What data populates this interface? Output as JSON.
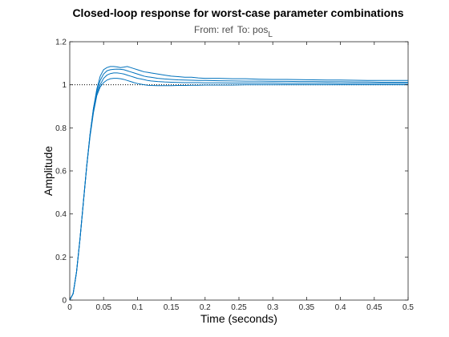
{
  "chart_data": {
    "type": "line",
    "title": "Closed-loop response for worst-case parameter combinations",
    "subtitle": {
      "from_label": "From: ref",
      "to_label": "To: pos",
      "to_subscript": "L"
    },
    "xlabel": "Time (seconds)",
    "ylabel": "Amplitude",
    "xlim": [
      0,
      0.5
    ],
    "ylim": [
      0,
      1.2
    ],
    "xticks": [
      0,
      0.05,
      0.1,
      0.15,
      0.2,
      0.25,
      0.3,
      0.35,
      0.4,
      0.45,
      0.5
    ],
    "yticks": [
      0,
      0.2,
      0.4,
      0.6,
      0.8,
      1,
      1.2
    ],
    "xtick_labels": [
      "0",
      "0.05",
      "0.1",
      "0.15",
      "0.2",
      "0.25",
      "0.3",
      "0.35",
      "0.4",
      "0.45",
      "0.5"
    ],
    "ytick_labels": [
      "0",
      "0.2",
      "0.4",
      "0.6",
      "0.8",
      "1",
      "1.2"
    ],
    "reference_line": {
      "y": 1,
      "style": "dotted",
      "color": "#000000"
    },
    "grid": false,
    "series_color": "#0072bd",
    "series": [
      {
        "x": [
          0,
          0.005,
          0.01,
          0.015,
          0.02,
          0.025,
          0.03,
          0.035,
          0.04,
          0.045,
          0.05,
          0.055,
          0.06,
          0.065,
          0.07,
          0.075,
          0.08,
          0.085,
          0.09,
          0.095,
          0.1,
          0.105,
          0.11,
          0.115,
          0.12,
          0.13,
          0.14,
          0.15,
          0.16,
          0.17,
          0.18,
          0.19,
          0.2,
          0.22,
          0.24,
          0.26,
          0.28,
          0.3,
          0.32,
          0.34,
          0.36,
          0.38,
          0.4,
          0.42,
          0.44,
          0.46,
          0.48,
          0.5
        ],
        "y": [
          0,
          0.03,
          0.13,
          0.28,
          0.45,
          0.62,
          0.77,
          0.89,
          0.98,
          1.04,
          1.07,
          1.08,
          1.085,
          1.085,
          1.083,
          1.08,
          1.082,
          1.085,
          1.08,
          1.075,
          1.07,
          1.065,
          1.06,
          1.058,
          1.055,
          1.05,
          1.045,
          1.04,
          1.038,
          1.035,
          1.035,
          1.032,
          1.03,
          1.03,
          1.028,
          1.028,
          1.026,
          1.025,
          1.025,
          1.024,
          1.023,
          1.022,
          1.022,
          1.021,
          1.02,
          1.02,
          1.02,
          1.02
        ]
      },
      {
        "x": [
          0,
          0.005,
          0.01,
          0.015,
          0.02,
          0.025,
          0.03,
          0.035,
          0.04,
          0.045,
          0.05,
          0.055,
          0.06,
          0.065,
          0.07,
          0.075,
          0.08,
          0.085,
          0.09,
          0.095,
          0.1,
          0.105,
          0.11,
          0.115,
          0.12,
          0.13,
          0.14,
          0.15,
          0.16,
          0.17,
          0.18,
          0.19,
          0.2,
          0.22,
          0.24,
          0.26,
          0.28,
          0.3,
          0.32,
          0.34,
          0.36,
          0.38,
          0.4,
          0.42,
          0.44,
          0.46,
          0.48,
          0.5
        ],
        "y": [
          0,
          0.03,
          0.13,
          0.28,
          0.45,
          0.62,
          0.77,
          0.89,
          0.97,
          1.02,
          1.05,
          1.065,
          1.07,
          1.072,
          1.073,
          1.072,
          1.07,
          1.065,
          1.06,
          1.055,
          1.05,
          1.045,
          1.04,
          1.037,
          1.035,
          1.03,
          1.027,
          1.025,
          1.023,
          1.022,
          1.021,
          1.02,
          1.02,
          1.019,
          1.018,
          1.017,
          1.017,
          1.016,
          1.016,
          1.015,
          1.015,
          1.014,
          1.014,
          1.013,
          1.013,
          1.012,
          1.012,
          1.012
        ]
      },
      {
        "x": [
          0,
          0.005,
          0.01,
          0.015,
          0.02,
          0.025,
          0.03,
          0.035,
          0.04,
          0.045,
          0.05,
          0.055,
          0.06,
          0.065,
          0.07,
          0.075,
          0.08,
          0.085,
          0.09,
          0.095,
          0.1,
          0.105,
          0.11,
          0.115,
          0.12,
          0.13,
          0.14,
          0.15,
          0.16,
          0.17,
          0.18,
          0.19,
          0.2,
          0.22,
          0.24,
          0.26,
          0.28,
          0.3,
          0.32,
          0.34,
          0.36,
          0.38,
          0.4,
          0.42,
          0.44,
          0.46,
          0.48,
          0.5
        ],
        "y": [
          0,
          0.03,
          0.13,
          0.28,
          0.45,
          0.62,
          0.77,
          0.88,
          0.96,
          1.0,
          1.03,
          1.045,
          1.052,
          1.055,
          1.055,
          1.053,
          1.05,
          1.045,
          1.04,
          1.035,
          1.03,
          1.027,
          1.024,
          1.02,
          1.018,
          1.015,
          1.013,
          1.012,
          1.011,
          1.01,
          1.01,
          1.01,
          1.009,
          1.009,
          1.008,
          1.008,
          1.008,
          1.008,
          1.007,
          1.007,
          1.007,
          1.007,
          1.006,
          1.006,
          1.006,
          1.006,
          1.006,
          1.006
        ]
      },
      {
        "x": [
          0,
          0.005,
          0.01,
          0.015,
          0.02,
          0.025,
          0.03,
          0.035,
          0.04,
          0.045,
          0.05,
          0.055,
          0.06,
          0.065,
          0.07,
          0.075,
          0.08,
          0.085,
          0.09,
          0.095,
          0.1,
          0.105,
          0.11,
          0.115,
          0.12,
          0.13,
          0.14,
          0.15,
          0.16,
          0.17,
          0.18,
          0.19,
          0.2,
          0.22,
          0.24,
          0.26,
          0.28,
          0.3,
          0.32,
          0.34,
          0.36,
          0.38,
          0.4,
          0.42,
          0.44,
          0.46,
          0.48,
          0.5
        ],
        "y": [
          0,
          0.03,
          0.13,
          0.28,
          0.45,
          0.62,
          0.76,
          0.87,
          0.95,
          0.99,
          1.01,
          1.022,
          1.028,
          1.03,
          1.03,
          1.028,
          1.025,
          1.02,
          1.015,
          1.01,
          1.006,
          1.003,
          1.0,
          0.998,
          0.997,
          0.996,
          0.996,
          0.996,
          0.997,
          0.997,
          0.998,
          0.998,
          0.999,
          0.999,
          0.999,
          1.0,
          1.0,
          1.0,
          1.0,
          1.0,
          1.0,
          1.0,
          1.0,
          1.0,
          1.0,
          1.0,
          1.0,
          1.0
        ]
      }
    ]
  }
}
